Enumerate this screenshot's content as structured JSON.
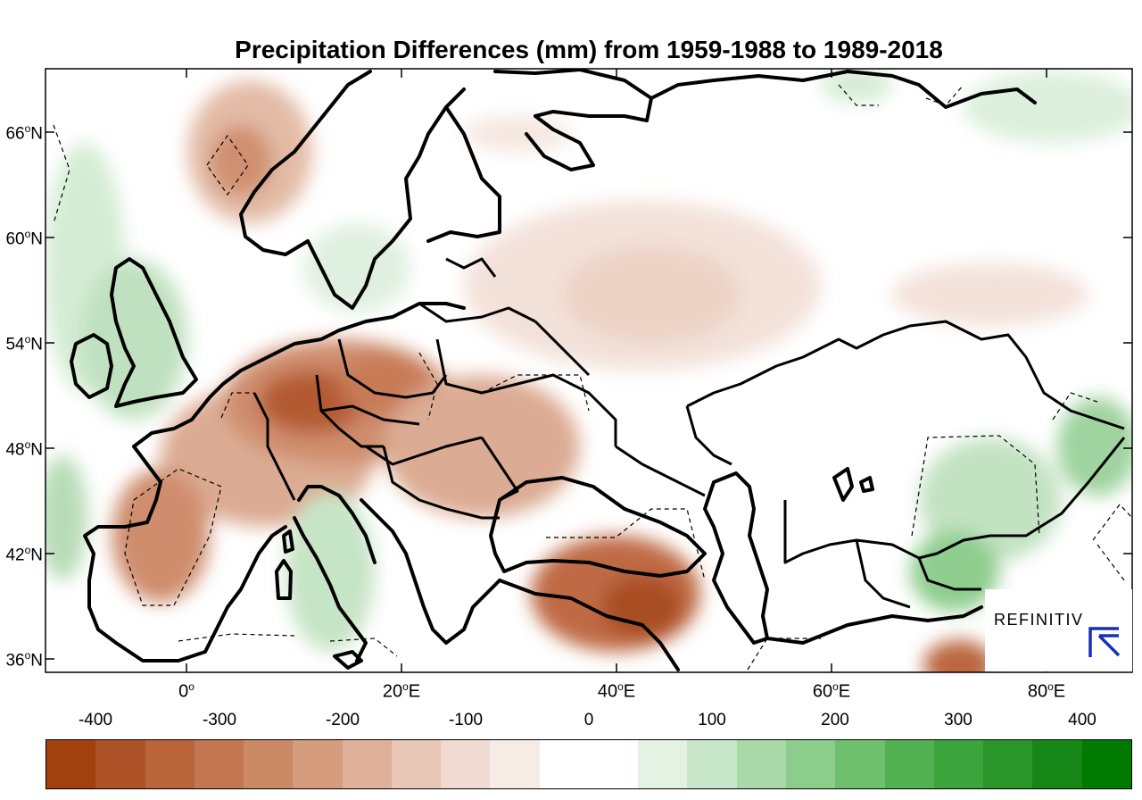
{
  "title": "Precipitation Differences (mm) from 1959-1988 to 1989-2018",
  "lat_labels": [
    {
      "deg": "66",
      "hemi": "N"
    },
    {
      "deg": "60",
      "hemi": "N"
    },
    {
      "deg": "54",
      "hemi": "N"
    },
    {
      "deg": "48",
      "hemi": "N"
    },
    {
      "deg": "42",
      "hemi": "N"
    },
    {
      "deg": "36",
      "hemi": "N"
    }
  ],
  "lon_labels": [
    {
      "deg": "0",
      "hemi": ""
    },
    {
      "deg": "20",
      "hemi": "E"
    },
    {
      "deg": "40",
      "hemi": "E"
    },
    {
      "deg": "60",
      "hemi": "E"
    },
    {
      "deg": "80",
      "hemi": "E"
    }
  ],
  "colorbar": {
    "tick_labels": [
      "-400",
      "-300",
      "-200",
      "-100",
      "0",
      "100",
      "200",
      "300",
      "400"
    ],
    "colors": [
      "#a0410e",
      "#ad5226",
      "#b9643b",
      "#c37650",
      "#cc8966",
      "#d59c7e",
      "#dfb19b",
      "#e8c7b7",
      "#efdbd1",
      "#f6ece6",
      "#ffffff",
      "#ffffff",
      "#e4f2e4",
      "#c8e6c8",
      "#a9d9a9",
      "#8ccd8c",
      "#6ebf6e",
      "#52b152",
      "#3ca43c",
      "#2a962a",
      "#168716",
      "#007a00"
    ]
  },
  "regions": {
    "dry": [
      {
        "name": "central-europe",
        "level": 0.85
      },
      {
        "name": "france-germany",
        "level": 0.6
      },
      {
        "name": "iberia",
        "level": 0.6
      },
      {
        "name": "norway-coast",
        "level": 0.55
      },
      {
        "name": "ukraine-balkans",
        "level": 0.45
      },
      {
        "name": "turkey-caucasus",
        "level": 0.85
      },
      {
        "name": "russia-west",
        "level": 0.25
      },
      {
        "name": "central-asia-south",
        "level": 0.7
      }
    ],
    "wet": [
      {
        "name": "british-isles",
        "level": 0.3
      },
      {
        "name": "atlantic-west",
        "level": 0.3
      },
      {
        "name": "italy-adriatic",
        "level": 0.35
      },
      {
        "name": "scandinavia-south",
        "level": 0.2
      },
      {
        "name": "kazakhstan-east",
        "level": 0.45
      },
      {
        "name": "tian-shan",
        "level": 0.6
      }
    ]
  },
  "watermark": {
    "text": "REFINITIV",
    "icon": "refinitiv-logo-icon"
  }
}
